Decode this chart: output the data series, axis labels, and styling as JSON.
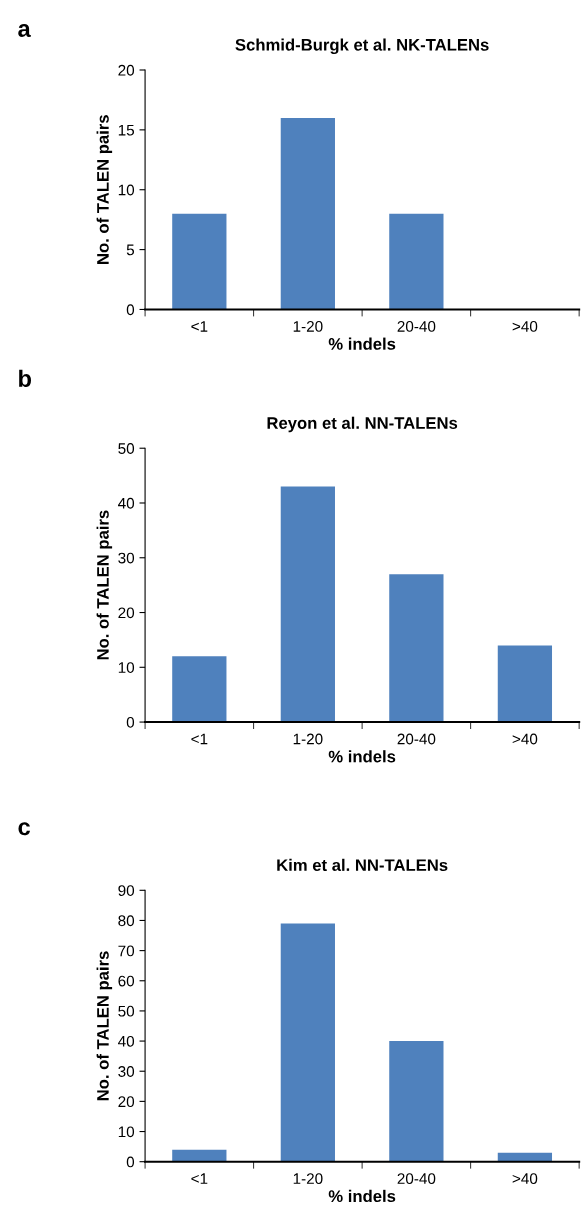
{
  "chart_data": [
    {
      "type": "bar",
      "title": "Schmid-Burgk et al. NK-TALENs",
      "xlabel": "% indels",
      "ylabel": "No. of TALEN pairs",
      "annotations": [
        "a"
      ],
      "categories": [
        "<1",
        "1-20",
        "20-40",
        ">40"
      ],
      "values": [
        8,
        16,
        8,
        0
      ],
      "color": "#4f81bd",
      "ylim": [
        0,
        20
      ],
      "yticks": [
        0,
        5,
        10,
        15,
        20
      ],
      "grid": false,
      "legend": false
    },
    {
      "type": "bar",
      "title": "Reyon et al. NN-TALENs",
      "xlabel": "% indels",
      "ylabel": "No. of TALEN pairs",
      "annotations": [
        "b"
      ],
      "categories": [
        "<1",
        "1-20",
        "20-40",
        ">40"
      ],
      "values": [
        12,
        43,
        27,
        14
      ],
      "color": "#4f81bd",
      "ylim": [
        0,
        50
      ],
      "yticks": [
        0,
        10,
        20,
        30,
        40,
        50
      ],
      "grid": false,
      "legend": false
    },
    {
      "type": "bar",
      "title": "Kim et al. NN-TALENs",
      "xlabel": "% indels",
      "ylabel": "No. of TALEN pairs",
      "annotations": [
        "c"
      ],
      "categories": [
        "<1",
        "1-20",
        "20-40",
        ">40"
      ],
      "values": [
        4,
        79,
        40,
        3
      ],
      "color": "#4f81bd",
      "ylim": [
        0,
        90
      ],
      "yticks": [
        0,
        10,
        20,
        30,
        40,
        50,
        60,
        70,
        80,
        90
      ],
      "grid": false,
      "legend": false
    }
  ]
}
